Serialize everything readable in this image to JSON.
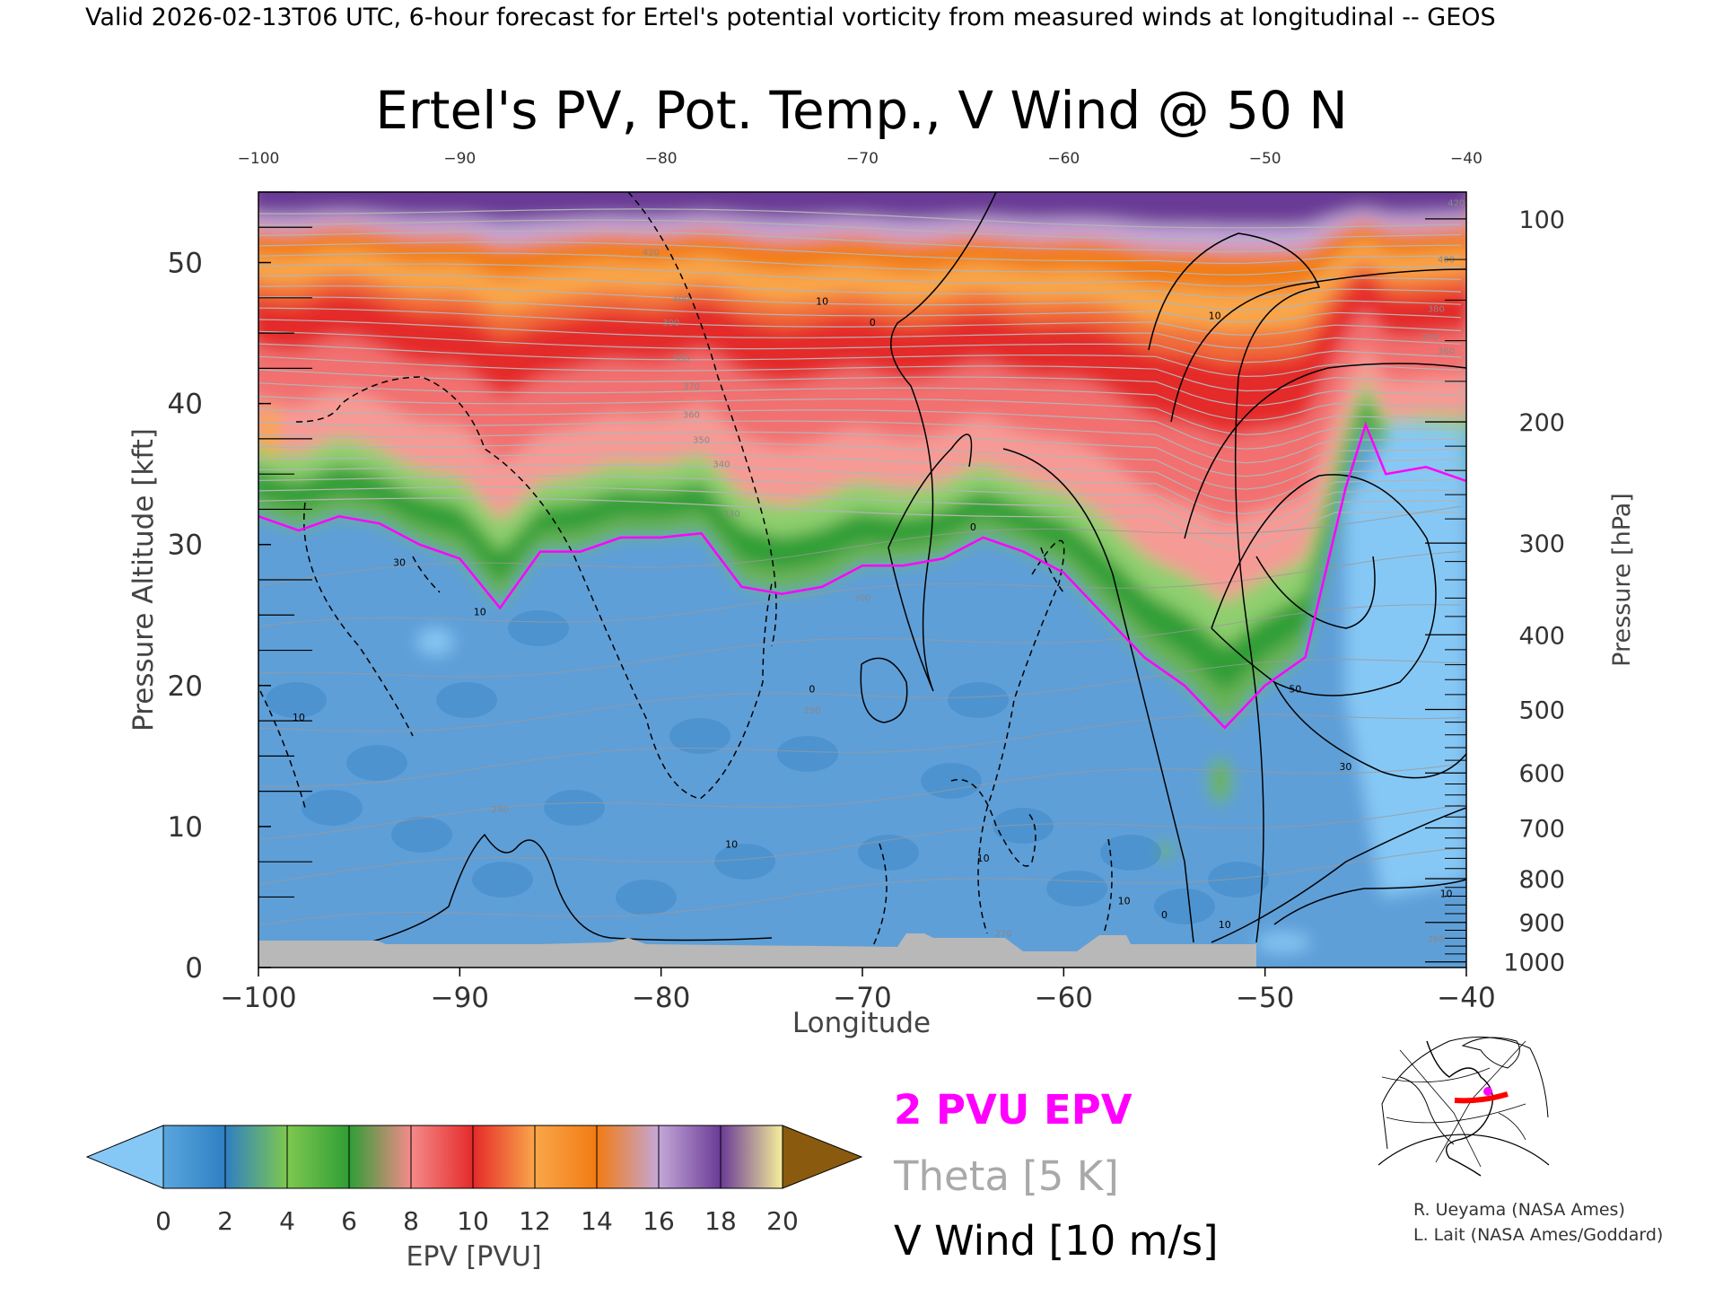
{
  "header": {
    "valid_line": "Valid 2026-02-13T06 UTC, 6-hour forecast for Ertel's potential vorticity from measured winds at longitudinal -- GEOS"
  },
  "chart_data": {
    "type": "heatmap",
    "title": "Ertel's PV, Pot. Temp., V Wind @ 50 N",
    "xlabel": "Longitude",
    "ylabel_left": "Pressure Altitude [kft]",
    "ylabel_right": "Pressure [hPa]",
    "xlim": [
      -100,
      -40
    ],
    "ylim_kft": [
      0,
      55
    ],
    "x_ticks": [
      -100,
      -90,
      -80,
      -70,
      -60,
      -50,
      -40
    ],
    "y_ticks_kft": [
      0,
      10,
      20,
      30,
      40,
      50
    ],
    "pressure_ticks_hpa": [
      1000,
      900,
      800,
      700,
      600,
      500,
      400,
      300,
      200,
      100
    ],
    "pressure_tick_altitude_kft": [
      0.4,
      3.2,
      6.3,
      9.9,
      13.8,
      18.3,
      23.6,
      30.1,
      38.7,
      53.1
    ],
    "colorbar": {
      "label": "EPV [PVU]",
      "ticks": [
        0,
        2,
        4,
        6,
        8,
        10,
        12,
        14,
        16,
        18,
        20
      ],
      "colors": [
        "#5aa6dd",
        "#2f7fc2",
        "#7ec84f",
        "#2f9e35",
        "#f58a8a",
        "#e52a2a",
        "#f9a64a",
        "#f27b12",
        "#c4a7d8",
        "#6a3b96",
        "#f5ee9a"
      ],
      "under_color": "#86c8f5",
      "over_color": "#8a5a0f"
    },
    "overlays": {
      "epv_contour": {
        "label": "2 PVU EPV",
        "color": "#ff00ff",
        "value_pvu": 2
      },
      "theta_contour": {
        "label": "Theta [5 K]",
        "color": "#a9a9a9",
        "interval_k": 5
      },
      "v_wind_contour": {
        "label": "V Wind [10 m/s]",
        "color": "#000000",
        "interval_ms": 10
      }
    },
    "tropopause_2pvu_kft": {
      "lon": [
        -100,
        -98,
        -96,
        -94,
        -92,
        -90,
        -88,
        -86,
        -84,
        -82,
        -80,
        -78,
        -76,
        -74,
        -72,
        -70,
        -68,
        -66,
        -64,
        -62,
        -60,
        -58,
        -56,
        -54,
        -52,
        -50,
        -48,
        -46,
        -45,
        -44,
        -42,
        -40
      ],
      "alt": [
        32,
        31,
        32,
        31.5,
        30,
        29,
        25.5,
        29.5,
        29.5,
        30.5,
        30.5,
        30.8,
        27,
        26.5,
        27,
        28.5,
        28.5,
        29,
        30.5,
        29.5,
        28,
        25,
        22,
        20,
        17,
        20,
        22,
        34,
        38.5,
        35,
        35.5,
        34.5
      ]
    },
    "v_wind_contour_labels": [
      {
        "text": "10",
        "lon": -89,
        "kft": 25
      },
      {
        "text": "30",
        "lon": -93,
        "kft": 28.5
      },
      {
        "text": "10",
        "lon": -98,
        "kft": 17.5
      },
      {
        "text": "10",
        "lon": -72,
        "kft": 47
      },
      {
        "text": "0",
        "lon": -69.5,
        "kft": 45.5
      },
      {
        "text": "0",
        "lon": -64.5,
        "kft": 31
      },
      {
        "text": "0",
        "lon": -72.5,
        "kft": 19.5
      },
      {
        "text": "10",
        "lon": -52.5,
        "kft": 46
      },
      {
        "text": "50",
        "lon": -48.5,
        "kft": 19.5
      },
      {
        "text": "30",
        "lon": -46,
        "kft": 14
      },
      {
        "text": "10",
        "lon": -41,
        "kft": 5
      },
      {
        "text": "10",
        "lon": -76.5,
        "kft": 8.5
      },
      {
        "text": "10",
        "lon": -64,
        "kft": 7.5
      },
      {
        "text": "10",
        "lon": -57,
        "kft": 4.5
      },
      {
        "text": "0",
        "lon": -55,
        "kft": 3.5
      },
      {
        "text": "10",
        "lon": -52,
        "kft": 2.8
      }
    ],
    "theta_contour_labels": [
      {
        "text": "420",
        "lon": -80.5,
        "kft": 50.5
      },
      {
        "text": "400",
        "lon": -79,
        "kft": 47.2
      },
      {
        "text": "390",
        "lon": -79.5,
        "kft": 45.5
      },
      {
        "text": "380",
        "lon": -79,
        "kft": 43
      },
      {
        "text": "370",
        "lon": -78.5,
        "kft": 41
      },
      {
        "text": "360",
        "lon": -78.5,
        "kft": 39
      },
      {
        "text": "350",
        "lon": -78,
        "kft": 37.2
      },
      {
        "text": "340",
        "lon": -77,
        "kft": 35.5
      },
      {
        "text": "330",
        "lon": -76.5,
        "kft": 32
      },
      {
        "text": "300",
        "lon": -70,
        "kft": 26
      },
      {
        "text": "290",
        "lon": -72.5,
        "kft": 18
      },
      {
        "text": "280",
        "lon": -88,
        "kft": 11
      },
      {
        "text": "270",
        "lon": -63,
        "kft": 2.2
      },
      {
        "text": "260",
        "lon": -41.5,
        "kft": 1.8
      },
      {
        "text": "420",
        "lon": -40.5,
        "kft": 54
      },
      {
        "text": "400",
        "lon": -41,
        "kft": 50
      },
      {
        "text": "380",
        "lon": -41.5,
        "kft": 46.5
      },
      {
        "text": "370",
        "lon": -41.8,
        "kft": 44.5
      },
      {
        "text": "360",
        "lon": -41,
        "kft": 43.5
      }
    ]
  },
  "legend": {
    "pvu_label": "2 PVU EPV",
    "theta_label": "Theta [5 K]",
    "vwind_label": "V Wind [10 m/s]"
  },
  "locator_map": {
    "track_color": "#ff0000",
    "marker_color": "#ff00ff"
  },
  "credits": {
    "line1": "R. Ueyama (NASA Ames)",
    "line2": "L. Lait (NASA Ames/Goddard)"
  }
}
